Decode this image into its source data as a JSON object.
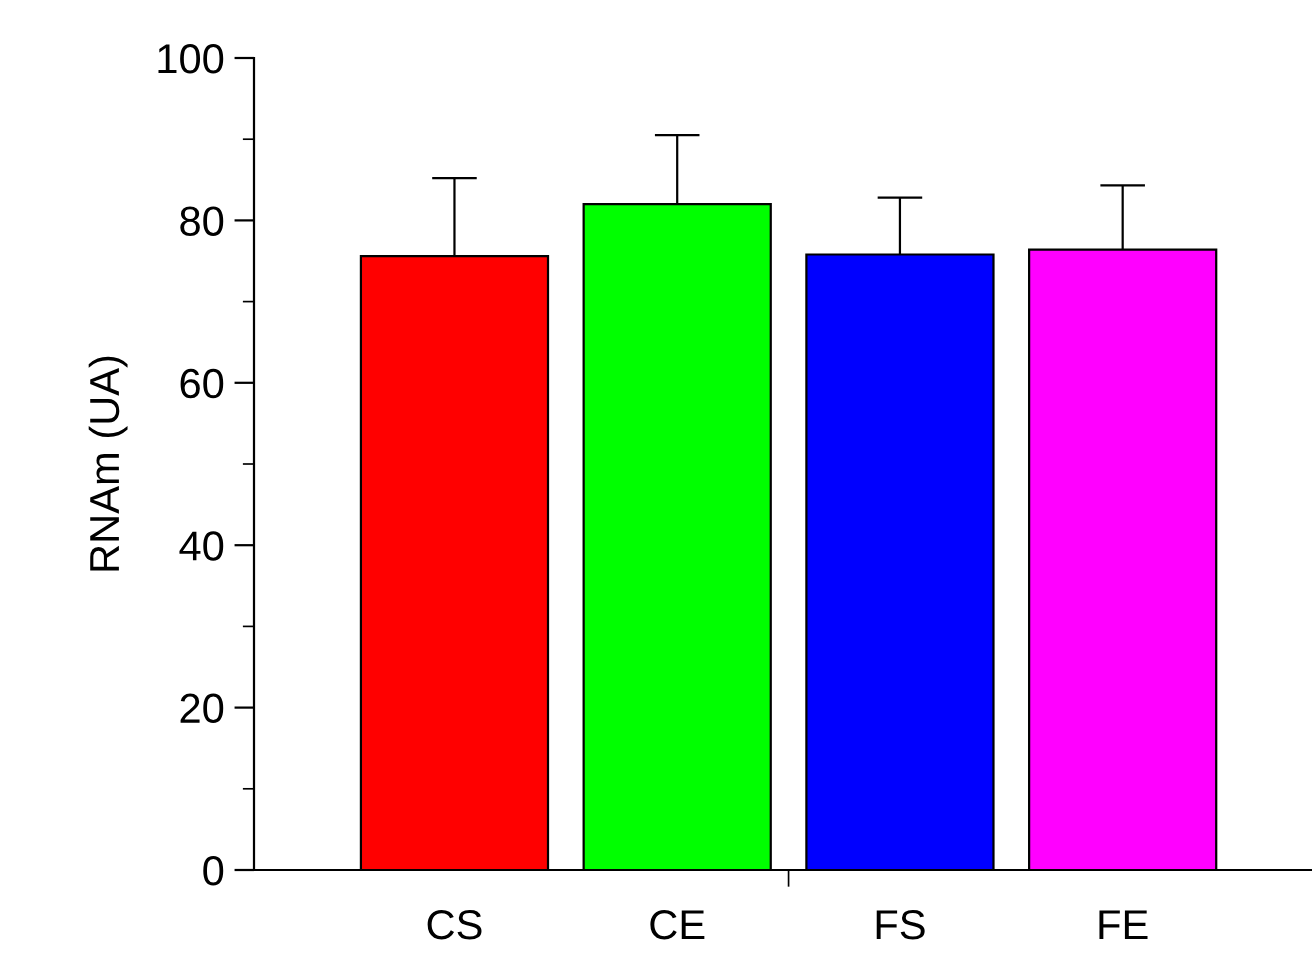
{
  "chart_data": {
    "type": "bar",
    "ylabel": "RNAm (UA)",
    "categories": [
      "CS",
      "CE",
      "FS",
      "FE"
    ],
    "values": [
      75.6,
      82.0,
      75.8,
      76.4
    ],
    "colors": [
      "#ff0000",
      "#00ff00",
      "#0000ff",
      "#ff00ff"
    ],
    "errors": [
      [
        75.6,
        85.2
      ],
      [
        82.0,
        90.5
      ],
      [
        75.8,
        82.8
      ],
      [
        76.4,
        84.3
      ]
    ],
    "ylim": [
      0,
      100
    ],
    "yticks": [
      0,
      20,
      40,
      60,
      80,
      100
    ],
    "grid": false,
    "legend": false
  }
}
